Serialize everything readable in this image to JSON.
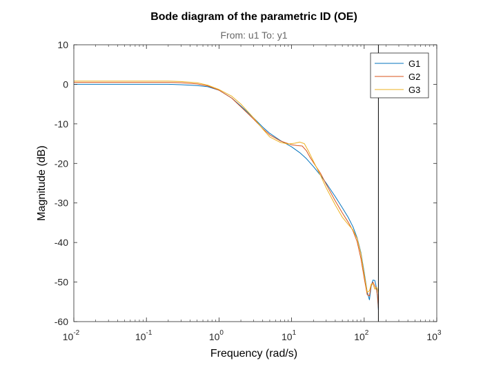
{
  "chart_data": {
    "type": "line",
    "title": "Bode diagram of the parametric ID (OE)",
    "subtitle": "From: u1  To: y1",
    "xlabel": "Frequency  (rad/s)",
    "ylabel": "Magnitude (dB)",
    "xscale": "log",
    "xlim": [
      0.01,
      1000
    ],
    "ylim": [
      -60,
      10
    ],
    "yticks": [
      10,
      0,
      -10,
      -20,
      -30,
      -40,
      -50,
      -60
    ],
    "xticks": [
      {
        "base": "10",
        "exp": "-2",
        "value": 0.01
      },
      {
        "base": "10",
        "exp": "-1",
        "value": 0.1
      },
      {
        "base": "10",
        "exp": "0",
        "value": 1
      },
      {
        "base": "10",
        "exp": "1",
        "value": 10
      },
      {
        "base": "10",
        "exp": "2",
        "value": 100
      },
      {
        "base": "10",
        "exp": "3",
        "value": 1000
      }
    ],
    "grid": false,
    "legend_position": "top-right",
    "nyquist_line_x": 157,
    "series": [
      {
        "name": "G1",
        "color": "#0072BD",
        "x": [
          0.01,
          0.05,
          0.1,
          0.2,
          0.3,
          0.5,
          0.7,
          1,
          1.5,
          2,
          3,
          4,
          5,
          7,
          10,
          13,
          16,
          20,
          25,
          30,
          40,
          50,
          60,
          70,
          80,
          90,
          100,
          110,
          118,
          125,
          132,
          140,
          148,
          153,
          157
        ],
        "y": [
          0,
          0,
          0,
          0,
          -0.1,
          -0.3,
          -0.6,
          -1.5,
          -3.5,
          -5.5,
          -8.5,
          -10.8,
          -12.4,
          -14.2,
          -15.8,
          -17.3,
          -18.8,
          -20.8,
          -23,
          -25,
          -28.4,
          -31.2,
          -33.6,
          -36,
          -38.8,
          -42.5,
          -47.5,
          -52.5,
          -54.5,
          -51,
          -49.5,
          -49.6,
          -51.5,
          -54,
          -57
        ]
      },
      {
        "name": "G2",
        "color": "#D95319",
        "x": [
          0.01,
          0.05,
          0.1,
          0.2,
          0.3,
          0.5,
          0.7,
          1,
          1.5,
          2,
          3,
          4,
          5,
          7,
          10,
          12,
          14,
          16,
          18,
          20,
          25,
          30,
          40,
          50,
          60,
          70,
          80,
          90,
          100,
          110,
          118,
          125,
          132,
          140,
          148,
          153,
          157
        ],
        "y": [
          0.5,
          0.5,
          0.5,
          0.5,
          0.4,
          0.1,
          -0.4,
          -1.5,
          -3.5,
          -5.7,
          -8.8,
          -11.2,
          -12.8,
          -14.3,
          -15.3,
          -15.5,
          -15.6,
          -16.8,
          -18.5,
          -19.8,
          -22.5,
          -25.3,
          -29.5,
          -32.5,
          -34.8,
          -37,
          -39.8,
          -44,
          -49,
          -53.2,
          -53.5,
          -50.8,
          -50,
          -51,
          -52,
          -53.5,
          -56.5
        ]
      },
      {
        "name": "G3",
        "color": "#EDB120",
        "x": [
          0.01,
          0.05,
          0.1,
          0.2,
          0.3,
          0.5,
          0.7,
          1,
          1.5,
          2,
          3,
          4,
          5,
          7,
          9,
          11,
          13,
          15,
          17,
          20,
          25,
          30,
          40,
          50,
          60,
          70,
          80,
          90,
          100,
          110,
          118,
          125,
          132,
          140,
          148,
          153,
          157
        ],
        "y": [
          0.8,
          0.8,
          0.8,
          0.8,
          0.7,
          0.4,
          -0.2,
          -1.3,
          -3,
          -5,
          -8.5,
          -11.3,
          -13.3,
          -14.7,
          -15.1,
          -14.9,
          -14.6,
          -15,
          -16.8,
          -19.5,
          -23,
          -26.2,
          -30.5,
          -33.6,
          -35.4,
          -36.8,
          -39,
          -42.8,
          -48,
          -52.6,
          -52.2,
          -50.5,
          -50.5,
          -51.8,
          -51.3,
          -51.8,
          -52.8
        ]
      }
    ]
  }
}
